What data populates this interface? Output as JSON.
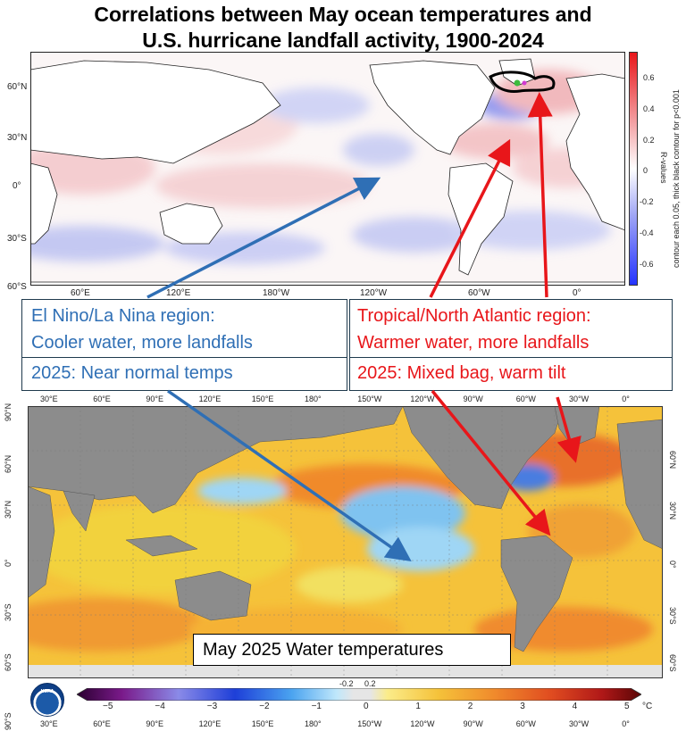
{
  "title": {
    "line1": "Correlations between May ocean temperatures and",
    "line2": "U.S. hurricane landfall activity, 1900-2024"
  },
  "top_map": {
    "lat_labels": [
      "60°N",
      "30°N",
      "0°",
      "30°S",
      "60°S"
    ],
    "lon_labels": [
      "60°E",
      "120°E",
      "180°W",
      "120°W",
      "60°W",
      "0°"
    ],
    "colorbar": {
      "ticks": [
        "0.6",
        "0.4",
        "0.2",
        "0",
        "-0.2",
        "-0.4",
        "-0.6"
      ],
      "label": "R-values",
      "note": "contour each 0.05, thick black contour for p<0.001",
      "colors": {
        "positive": "#e8161a",
        "negative": "#2433ff",
        "neutral": "#ffffff"
      }
    }
  },
  "annotations": {
    "enso_box": {
      "line1": "El Nino/La Nina region:",
      "line2": "Cooler water, more landfalls"
    },
    "enso_2025": "2025: Near normal temps",
    "atlantic_box": {
      "line1": "Tropical/North Atlantic region:",
      "line2": "Warmer water, more landfalls"
    },
    "atlantic_2025": "2025: Mixed bag, warm tilt",
    "colors": {
      "enso": "#2f6fb5",
      "atlantic": "#e8161a"
    }
  },
  "bottom_map": {
    "top_lon_labels": [
      "30°E",
      "60°E",
      "90°E",
      "120°E",
      "150°E",
      "180°",
      "150°W",
      "120°W",
      "90°W",
      "60°W",
      "30°W",
      "0°"
    ],
    "bottom_lon_labels": [
      "30°E",
      "60°E",
      "90°E",
      "120°E",
      "150°E",
      "180°",
      "150°W",
      "120°W",
      "90°W",
      "60°W",
      "30°W",
      "0°"
    ],
    "left_lat_labels": [
      "90°N",
      "60°N",
      "30°N",
      "0°",
      "30°S",
      "60°S",
      "90°S"
    ],
    "right_lat_labels": [
      "60°N",
      "30°N",
      "0°",
      "30°S",
      "60°S"
    ],
    "caption": "May 2025 Water temperatures",
    "colorbar": {
      "ticks": [
        "−5",
        "−4",
        "−3",
        "−2",
        "−1",
        "0",
        "1",
        "2",
        "3",
        "4",
        "5"
      ],
      "mini_ticks": [
        "-0.2",
        "0.2"
      ],
      "unit": "°C"
    },
    "logo_text": "NOAA",
    "land_color": "#8c8c8c"
  }
}
